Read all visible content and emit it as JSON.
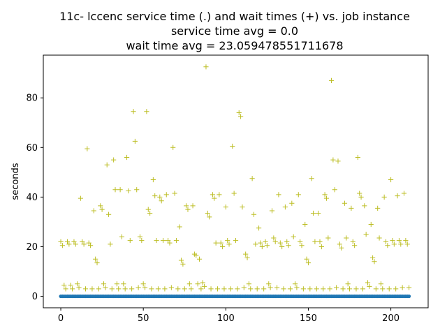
{
  "chart_data": {
    "type": "scatter",
    "title_lines": [
      "11c- lccenc service time (.) and wait times (+) vs. job instance",
      "service time avg = 0.0",
      "wait time avg = 23.059478551711678"
    ],
    "xlabel": "",
    "ylabel": "seconds",
    "xlim": [
      -10.6,
      222.6
    ],
    "ylim": [
      -4.63,
      97.23
    ],
    "xticks": [
      0,
      50,
      100,
      150,
      200
    ],
    "yticks": [
      0,
      20,
      40,
      60,
      80
    ],
    "grid": false,
    "colors": {
      "service": "#1f77b4",
      "wait": "#bcbd22"
    },
    "series": [
      {
        "marker": "dot",
        "x_range": [
          0,
          212
        ],
        "y_constant": 0.0
      },
      {
        "marker": "plus",
        "points": [
          [
            0,
            22
          ],
          [
            1,
            20.5
          ],
          [
            2,
            4.5
          ],
          [
            3,
            3
          ],
          [
            4,
            22
          ],
          [
            5,
            21
          ],
          [
            6,
            4.5
          ],
          [
            7,
            3
          ],
          [
            8,
            22
          ],
          [
            9,
            21
          ],
          [
            10,
            5
          ],
          [
            11,
            3.5
          ],
          [
            12,
            39.5
          ],
          [
            13,
            22
          ],
          [
            14,
            21
          ],
          [
            15,
            3
          ],
          [
            16,
            59.5
          ],
          [
            17,
            21.5
          ],
          [
            18,
            20.5
          ],
          [
            19,
            3
          ],
          [
            20,
            34.5
          ],
          [
            21,
            15
          ],
          [
            22,
            13.5
          ],
          [
            23,
            3
          ],
          [
            24,
            36.5
          ],
          [
            25,
            35
          ],
          [
            26,
            5
          ],
          [
            27,
            3.5
          ],
          [
            28,
            53
          ],
          [
            29,
            33
          ],
          [
            30,
            21
          ],
          [
            31,
            3
          ],
          [
            32,
            55
          ],
          [
            33,
            43
          ],
          [
            34,
            5
          ],
          [
            35,
            3
          ],
          [
            36,
            43
          ],
          [
            37,
            24
          ],
          [
            38,
            5
          ],
          [
            39,
            3
          ],
          [
            40,
            56
          ],
          [
            41,
            42.5
          ],
          [
            42,
            22.5
          ],
          [
            43,
            3
          ],
          [
            44,
            74.5
          ],
          [
            45,
            62.5
          ],
          [
            46,
            43
          ],
          [
            47,
            3.5
          ],
          [
            48,
            24
          ],
          [
            49,
            22.5
          ],
          [
            50,
            5
          ],
          [
            51,
            3.5
          ],
          [
            52,
            74.5
          ],
          [
            53,
            35
          ],
          [
            54,
            33.5
          ],
          [
            55,
            3
          ],
          [
            56,
            47
          ],
          [
            57,
            40.5
          ],
          [
            58,
            22.5
          ],
          [
            59,
            3
          ],
          [
            60,
            40
          ],
          [
            61,
            38.5
          ],
          [
            62,
            22.5
          ],
          [
            63,
            3
          ],
          [
            64,
            41
          ],
          [
            65,
            22.5
          ],
          [
            66,
            21.5
          ],
          [
            67,
            3.5
          ],
          [
            68,
            60
          ],
          [
            69,
            41.5
          ],
          [
            70,
            22.5
          ],
          [
            71,
            3
          ],
          [
            72,
            28
          ],
          [
            73,
            14.5
          ],
          [
            74,
            13
          ],
          [
            75,
            3
          ],
          [
            76,
            36.5
          ],
          [
            77,
            35
          ],
          [
            78,
            5
          ],
          [
            79,
            3
          ],
          [
            80,
            36.5
          ],
          [
            81,
            17
          ],
          [
            82,
            16.5
          ],
          [
            83,
            5
          ],
          [
            84,
            15
          ],
          [
            85,
            3
          ],
          [
            86,
            5.5
          ],
          [
            87,
            4
          ],
          [
            88,
            92.5
          ],
          [
            89,
            33.5
          ],
          [
            90,
            32
          ],
          [
            91,
            3
          ],
          [
            92,
            41
          ],
          [
            93,
            39.5
          ],
          [
            94,
            21.5
          ],
          [
            95,
            3
          ],
          [
            96,
            41
          ],
          [
            97,
            21.5
          ],
          [
            98,
            20
          ],
          [
            99,
            3
          ],
          [
            100,
            36
          ],
          [
            101,
            22.5
          ],
          [
            102,
            21
          ],
          [
            103,
            3
          ],
          [
            104,
            60.5
          ],
          [
            105,
            41.5
          ],
          [
            106,
            22.5
          ],
          [
            107,
            3
          ],
          [
            108,
            74
          ],
          [
            109,
            72.5
          ],
          [
            110,
            36
          ],
          [
            111,
            3.5
          ],
          [
            112,
            17
          ],
          [
            113,
            15.5
          ],
          [
            114,
            5
          ],
          [
            115,
            3
          ],
          [
            116,
            47.5
          ],
          [
            117,
            33
          ],
          [
            118,
            21
          ],
          [
            119,
            3
          ],
          [
            120,
            27.5
          ],
          [
            121,
            21.5
          ],
          [
            122,
            20
          ],
          [
            123,
            3
          ],
          [
            124,
            22
          ],
          [
            125,
            20.5
          ],
          [
            126,
            5
          ],
          [
            127,
            3.5
          ],
          [
            128,
            34.5
          ],
          [
            129,
            23.5
          ],
          [
            130,
            22
          ],
          [
            131,
            3.5
          ],
          [
            132,
            41
          ],
          [
            133,
            21.5
          ],
          [
            134,
            20
          ],
          [
            135,
            3
          ],
          [
            136,
            36
          ],
          [
            137,
            22
          ],
          [
            138,
            20.5
          ],
          [
            139,
            3
          ],
          [
            140,
            37.5
          ],
          [
            141,
            24
          ],
          [
            142,
            5
          ],
          [
            143,
            3.5
          ],
          [
            144,
            41
          ],
          [
            145,
            22
          ],
          [
            146,
            20.5
          ],
          [
            147,
            3
          ],
          [
            148,
            29
          ],
          [
            149,
            15
          ],
          [
            150,
            13.5
          ],
          [
            151,
            3
          ],
          [
            152,
            47.5
          ],
          [
            153,
            33.5
          ],
          [
            154,
            22
          ],
          [
            155,
            3
          ],
          [
            156,
            33.5
          ],
          [
            157,
            22
          ],
          [
            158,
            20
          ],
          [
            159,
            3
          ],
          [
            160,
            41
          ],
          [
            161,
            39.5
          ],
          [
            162,
            23.5
          ],
          [
            163,
            3
          ],
          [
            164,
            87
          ],
          [
            165,
            55
          ],
          [
            166,
            43
          ],
          [
            167,
            3.5
          ],
          [
            168,
            54.5
          ],
          [
            169,
            21
          ],
          [
            170,
            19.5
          ],
          [
            171,
            3
          ],
          [
            172,
            37.5
          ],
          [
            173,
            23.5
          ],
          [
            174,
            5
          ],
          [
            175,
            3
          ],
          [
            176,
            35.5
          ],
          [
            177,
            22
          ],
          [
            178,
            20.5
          ],
          [
            179,
            3
          ],
          [
            180,
            56
          ],
          [
            181,
            41.5
          ],
          [
            182,
            40
          ],
          [
            183,
            3
          ],
          [
            184,
            36.5
          ],
          [
            185,
            25
          ],
          [
            186,
            5.5
          ],
          [
            187,
            4
          ],
          [
            188,
            29
          ],
          [
            189,
            15.5
          ],
          [
            190,
            14
          ],
          [
            191,
            3
          ],
          [
            192,
            35.5
          ],
          [
            193,
            23.5
          ],
          [
            194,
            5
          ],
          [
            195,
            3
          ],
          [
            196,
            40
          ],
          [
            197,
            22
          ],
          [
            198,
            20.5
          ],
          [
            199,
            3
          ],
          [
            200,
            47
          ],
          [
            201,
            22.5
          ],
          [
            202,
            21
          ],
          [
            203,
            3
          ],
          [
            204,
            40.5
          ],
          [
            205,
            22.5
          ],
          [
            206,
            21
          ],
          [
            207,
            3.5
          ],
          [
            208,
            41.5
          ],
          [
            209,
            22.5
          ],
          [
            210,
            21
          ],
          [
            211,
            3.5
          ]
        ]
      }
    ]
  }
}
